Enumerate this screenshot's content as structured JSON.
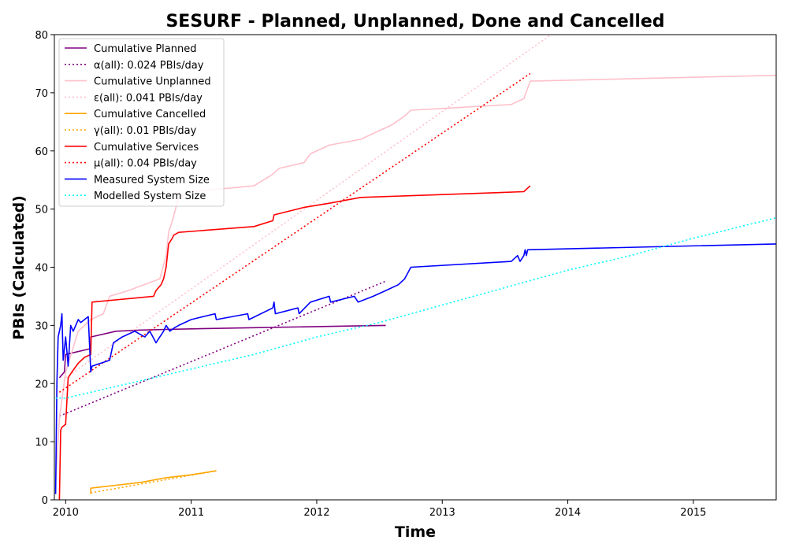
{
  "chart_data": {
    "type": "line",
    "title": "SESURF - Planned, Unplanned, Done  and Cancelled",
    "xlabel": "Time",
    "ylabel": "PBIs (Calculated)",
    "xlim": [
      2009.91,
      2015.66
    ],
    "ylim": [
      0,
      80
    ],
    "x_ticks": [
      2010,
      2011,
      2012,
      2013,
      2014,
      2015
    ],
    "x_tick_labels": [
      "2010",
      "2011",
      "2012",
      "2013",
      "2014",
      "2015"
    ],
    "y_ticks": [
      0,
      10,
      20,
      30,
      40,
      50,
      60,
      70,
      80
    ],
    "y_tick_labels": [
      "0",
      "10",
      "20",
      "30",
      "40",
      "50",
      "60",
      "70",
      "80"
    ],
    "grid": false,
    "legend_position": "top-left",
    "series": [
      {
        "name": "Cumulative Planned",
        "color": "#800080",
        "style": "solid",
        "x": [
          2009.95,
          2009.97,
          2009.99,
          2010.0,
          2010.2,
          2010.2,
          2010.4,
          2010.6,
          2010.8,
          2011.0,
          2011.5,
          2012.0,
          2012.3,
          2012.55
        ],
        "y": [
          21,
          21.5,
          22,
          25,
          26,
          28,
          29,
          29.2,
          29.3,
          29.4,
          29.6,
          29.8,
          29.9,
          30
        ]
      },
      {
        "name": "α(all): 0.024 PBIs/day",
        "color": "#800080",
        "style": "dotted",
        "x": [
          2009.95,
          2012.55
        ],
        "y": [
          14.4,
          37.6
        ]
      },
      {
        "name": "Cumulative Unplanned",
        "color": "#ffc0cb",
        "style": "solid",
        "x": [
          2009.92,
          2009.95,
          2010.0,
          2010.1,
          2010.2,
          2010.3,
          2010.35,
          2010.5,
          2010.75,
          2010.8,
          2010.82,
          2010.85,
          2010.9,
          2011.0,
          2011.5,
          2011.65,
          2011.7,
          2011.9,
          2011.95,
          2012.1,
          2012.35,
          2012.45,
          2012.6,
          2012.7,
          2012.75,
          2013.0,
          2013.55,
          2013.65,
          2013.7,
          2015.66
        ],
        "y": [
          3,
          14,
          22,
          29,
          31,
          32,
          35,
          36,
          38,
          42,
          46,
          48,
          52,
          53,
          54,
          56,
          57,
          58,
          59.5,
          61,
          62,
          63,
          64.5,
          66,
          67,
          67.3,
          68,
          69,
          72,
          73
        ]
      },
      {
        "name": "ε(all): 0.041 PBIs/day",
        "color": "#ffc0cb",
        "style": "dotted",
        "x": [
          2010.0,
          2013.9
        ],
        "y": [
          21,
          80.5
        ]
      },
      {
        "name": "Cumulative Cancelled",
        "color": "#ffa500",
        "style": "solid",
        "x": [
          2010.2,
          2010.2,
          2010.4,
          2010.6,
          2010.8,
          2011.0,
          2011.2
        ],
        "y": [
          1,
          2,
          2.5,
          3,
          3.8,
          4.3,
          5
        ]
      },
      {
        "name": "γ(all): 0.01 PBIs/day",
        "color": "#ffa500",
        "style": "dotted",
        "x": [
          2010.2,
          2011.2
        ],
        "y": [
          1.2,
          5
        ]
      },
      {
        "name": "Cumulative Services",
        "color": "#ff0000",
        "style": "solid",
        "x": [
          2009.95,
          2009.96,
          2009.97,
          2010.0,
          2010.02,
          2010.05,
          2010.1,
          2010.15,
          2010.2,
          2010.21,
          2010.7,
          2010.72,
          2010.76,
          2010.78,
          2010.8,
          2010.82,
          2010.85,
          2010.86,
          2010.9,
          2011.5,
          2011.65,
          2011.66,
          2011.9,
          2012.1,
          2012.35,
          2013.65,
          2013.7
        ],
        "y": [
          0,
          12,
          12.5,
          13,
          21,
          22,
          23.5,
          24.5,
          25,
          34,
          35,
          36,
          37,
          38,
          40,
          44,
          45,
          45.5,
          46,
          47,
          48,
          49,
          50.3,
          51,
          52,
          53,
          54
        ]
      },
      {
        "name": "μ(all): 0.04 PBIs/day",
        "color": "#ff0000",
        "style": "dotted",
        "x": [
          2009.95,
          2013.7
        ],
        "y": [
          18.5,
          73.3
        ]
      },
      {
        "name": "Measured System Size",
        "color": "#0000ff",
        "style": "solid",
        "x": [
          2009.92,
          2009.93,
          2009.94,
          2009.96,
          2009.97,
          2009.98,
          2010.0,
          2010.02,
          2010.04,
          2010.06,
          2010.08,
          2010.1,
          2010.12,
          2010.15,
          2010.18,
          2010.2,
          2010.21,
          2010.35,
          2010.38,
          2010.45,
          2010.55,
          2010.63,
          2010.67,
          2010.72,
          2010.75,
          2010.78,
          2010.8,
          2010.83,
          2010.86,
          2010.9,
          2011.0,
          2011.19,
          2011.2,
          2011.45,
          2011.46,
          2011.65,
          2011.66,
          2011.67,
          2011.85,
          2011.86,
          2011.95,
          2012.1,
          2012.11,
          2012.3,
          2012.33,
          2012.45,
          2012.55,
          2012.65,
          2012.7,
          2012.75,
          2013.55,
          2013.6,
          2013.62,
          2013.65,
          2013.66,
          2013.67,
          2013.68,
          2015.66
        ],
        "y": [
          1,
          20,
          28,
          30,
          32,
          24,
          28,
          23,
          30,
          29,
          30,
          31,
          30.5,
          31,
          31.5,
          22,
          23,
          24,
          27,
          28,
          29,
          28,
          29,
          27,
          28,
          29,
          30,
          29,
          29.5,
          30,
          31,
          32,
          31,
          32,
          31,
          33,
          34,
          32,
          33,
          32,
          34,
          35,
          34,
          35,
          34,
          35,
          36,
          37,
          38,
          40,
          41,
          42,
          41,
          42,
          43,
          42,
          43,
          44
        ]
      },
      {
        "name": "Modelled System Size",
        "color": "#00ffff",
        "style": "dotted",
        "x": [
          2009.92,
          2010.0,
          2010.5,
          2011.0,
          2011.5,
          2012.0,
          2012.5,
          2013.0,
          2013.5,
          2014.0,
          2014.5,
          2015.0,
          2015.66
        ],
        "y": [
          17.5,
          17.5,
          20,
          22.5,
          25,
          28,
          30.5,
          33.5,
          36.5,
          39.5,
          42,
          45,
          48.5
        ]
      }
    ]
  }
}
